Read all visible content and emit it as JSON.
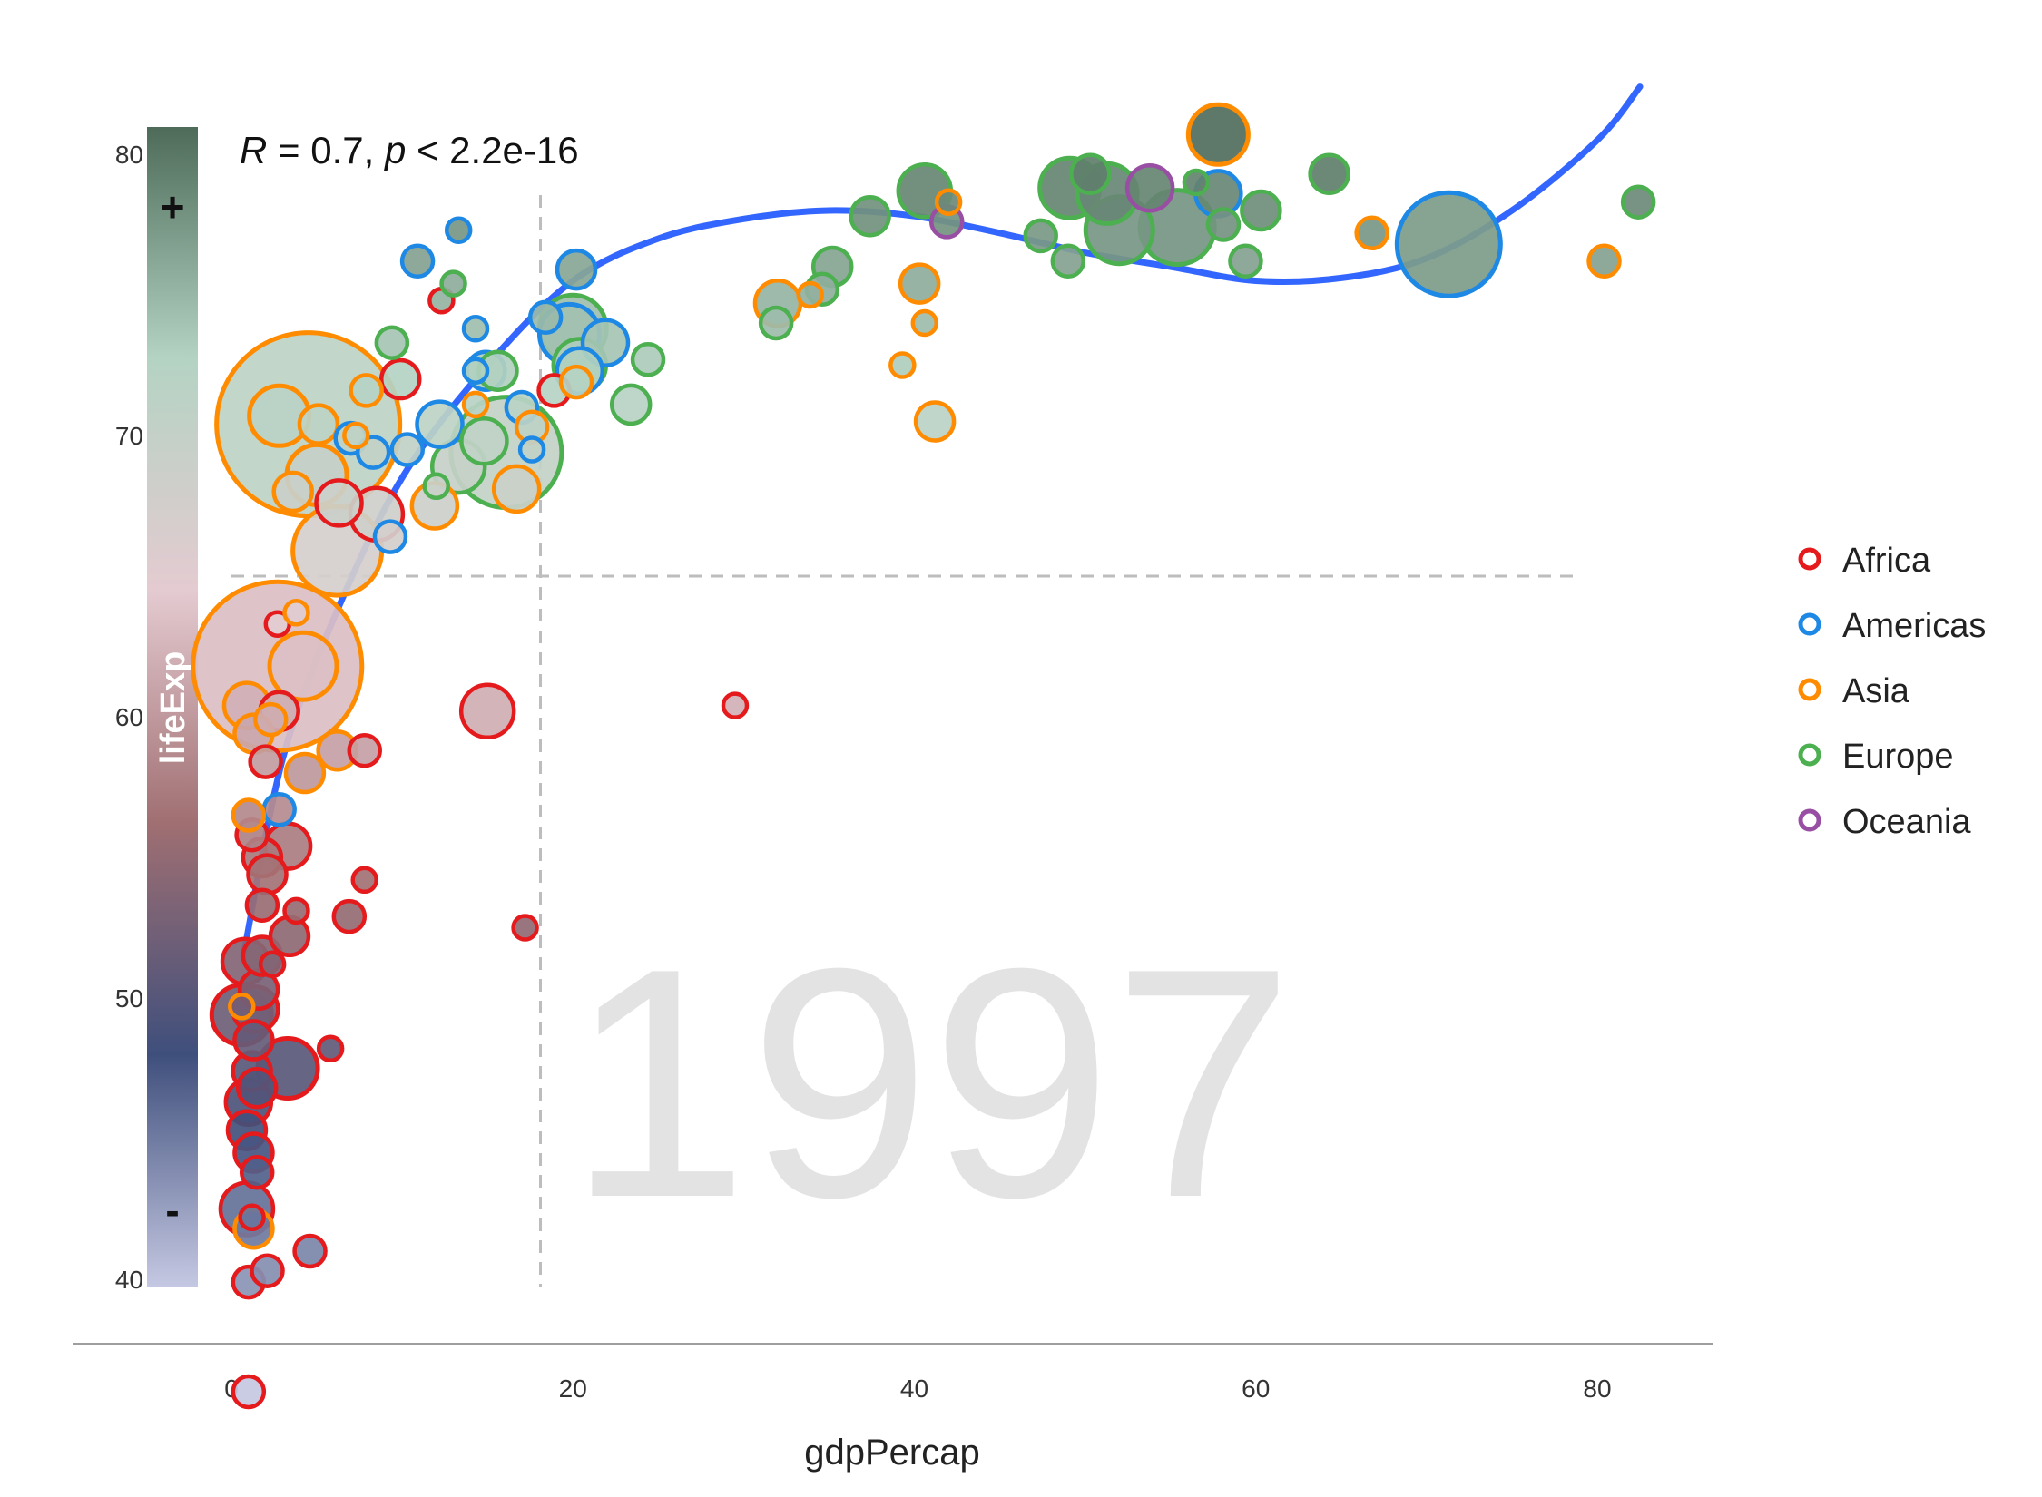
{
  "chart_data": {
    "type": "scatter",
    "xlabel": "gdpPercap",
    "ylabel": "",
    "x_ticks": [
      "0",
      "20",
      "40",
      "60",
      "80"
    ],
    "x_tick_values": [
      0,
      20,
      40,
      60,
      80
    ],
    "y_ticks": [
      "40",
      "50",
      "60",
      "70",
      "80"
    ],
    "y_tick_values": [
      40,
      50,
      60,
      70,
      80
    ],
    "xlim": [
      -9.5,
      87
    ],
    "ylim": [
      35.9,
      81.2
    ],
    "background_label": "1997",
    "stat": {
      "R_symbol": "R",
      "R_value": " = 0.7, ",
      "p_symbol": "p",
      "p_value": " < 2.2e-16"
    },
    "colorbar": {
      "title": "lifeExp",
      "plus": "+",
      "minus": "-",
      "min": 36,
      "max": 81,
      "stops": [
        "#c5c8e2",
        "#3f4f7c",
        "#a06f72",
        "#e4cbd1",
        "#b4d3c3",
        "#4d6b58"
      ]
    },
    "reference_lines": {
      "vline_x": 18.1,
      "hline_y": 65,
      "color": "#bdbdbd"
    },
    "smooth_color": "#3366ff",
    "smooth": [
      [
        0.7,
        51.5
      ],
      [
        3,
        58.5
      ],
      [
        6,
        63.5
      ],
      [
        10,
        68.5
      ],
      [
        15,
        72.5
      ],
      [
        20,
        75.5
      ],
      [
        25,
        77
      ],
      [
        30,
        77.7
      ],
      [
        35,
        78
      ],
      [
        40,
        77.8
      ],
      [
        45,
        77.2
      ],
      [
        50,
        76.5
      ],
      [
        55,
        76
      ],
      [
        60,
        75.5
      ],
      [
        65,
        75.6
      ],
      [
        70,
        76.3
      ],
      [
        75,
        78
      ],
      [
        80,
        80.5
      ],
      [
        82.5,
        82.4
      ]
    ],
    "legend": {
      "position": "right",
      "entries": [
        {
          "name": "Africa",
          "color": "#e41a1c"
        },
        {
          "name": "Americas",
          "color": "#1e88e5"
        },
        {
          "name": "Asia",
          "color": "#ff8c00"
        },
        {
          "name": "Europe",
          "color": "#4caf50"
        },
        {
          "name": "Oceania",
          "color": "#984ea3"
        }
      ]
    },
    "series": [
      {
        "name": "Africa",
        "color": "#e41a1c",
        "points": [
          [
            0.6,
            49.4,
            14
          ],
          [
            0.8,
            51.3,
            10
          ],
          [
            0.9,
            42.5,
            12
          ],
          [
            1.0,
            46.3,
            10
          ],
          [
            0.9,
            45.3,
            8
          ],
          [
            1.0,
            39.9,
            6
          ],
          [
            1.0,
            36.0,
            6
          ],
          [
            1.2,
            47.4,
            8
          ],
          [
            1.3,
            48.5,
            8
          ],
          [
            1.4,
            49.6,
            10
          ],
          [
            1.6,
            50.3,
            8
          ],
          [
            1.5,
            46.8,
            8
          ],
          [
            1.3,
            44.5,
            8
          ],
          [
            1.5,
            43.8,
            6
          ],
          [
            1.8,
            51.5,
            8
          ],
          [
            1.2,
            55.8,
            6
          ],
          [
            1.8,
            55.0,
            8
          ],
          [
            2.1,
            54.4,
            8
          ],
          [
            3.3,
            47.5,
            14
          ],
          [
            3.3,
            55.4,
            10
          ],
          [
            1.8,
            53.3,
            6
          ],
          [
            3.4,
            52.2,
            8
          ],
          [
            2.0,
            58.4,
            6
          ],
          [
            2.8,
            60.2,
            8
          ],
          [
            2.7,
            63.3,
            4
          ],
          [
            3.8,
            53.1,
            4
          ],
          [
            2.1,
            40.3,
            6
          ],
          [
            4.6,
            41.0,
            6
          ],
          [
            5.8,
            48.2,
            4
          ],
          [
            6.3,
            67.6,
            10
          ],
          [
            6.9,
            52.9,
            6
          ],
          [
            7.8,
            58.8,
            6
          ],
          [
            7.8,
            54.2,
            4
          ],
          [
            8.5,
            67.2,
            12
          ],
          [
            9.9,
            72.0,
            8
          ],
          [
            12.3,
            74.8,
            4
          ],
          [
            15.0,
            60.2,
            12
          ],
          [
            17.2,
            52.5,
            4
          ],
          [
            18.9,
            71.6,
            6
          ],
          [
            29.5,
            60.4,
            4
          ],
          [
            1.2,
            42.2,
            4
          ],
          [
            2.4,
            51.2,
            4
          ]
        ]
      },
      {
        "name": "Americas",
        "color": "#1e88e5",
        "points": [
          [
            2.8,
            56.7,
            6
          ],
          [
            7.0,
            69.9,
            6
          ],
          [
            8.3,
            69.4,
            6
          ],
          [
            9.3,
            66.4,
            6
          ],
          [
            10.3,
            69.5,
            6
          ],
          [
            10.9,
            76.2,
            6
          ],
          [
            12.2,
            70.4,
            10
          ],
          [
            13.3,
            77.3,
            4
          ],
          [
            14.3,
            72.3,
            4
          ],
          [
            14.3,
            73.8,
            4
          ],
          [
            14.9,
            72.3,
            8
          ],
          [
            17.0,
            71.0,
            6
          ],
          [
            17.6,
            69.5,
            4
          ],
          [
            18.4,
            74.2,
            6
          ],
          [
            19.8,
            73.6,
            14
          ],
          [
            20.2,
            75.9,
            8
          ],
          [
            21.9,
            73.3,
            10
          ],
          [
            20.4,
            72.3,
            10
          ],
          [
            57.8,
            78.6,
            10
          ],
          [
            71.3,
            76.8,
            26
          ]
        ]
      },
      {
        "name": "Asia",
        "color": "#ff8c00",
        "points": [
          [
            4.5,
            70.4,
            48
          ],
          [
            2.7,
            61.8,
            44
          ],
          [
            2.8,
            70.7,
            14
          ],
          [
            4.2,
            61.8,
            16
          ],
          [
            3.6,
            68.0,
            8
          ],
          [
            4.3,
            58.0,
            8
          ],
          [
            6.2,
            65.9,
            22
          ],
          [
            5.1,
            70.4,
            8
          ],
          [
            5.0,
            68.6,
            14
          ],
          [
            1.0,
            56.5,
            6
          ],
          [
            1.3,
            59.4,
            8
          ],
          [
            0.9,
            60.4,
            10
          ],
          [
            1.3,
            41.8,
            8
          ],
          [
            2.3,
            59.9,
            6
          ],
          [
            3.8,
            63.7,
            4
          ],
          [
            6.2,
            58.8,
            8
          ],
          [
            7.3,
            70.0,
            4
          ],
          [
            7.9,
            71.6,
            6
          ],
          [
            11.9,
            67.5,
            10
          ],
          [
            14.3,
            71.1,
            4
          ],
          [
            16.7,
            68.1,
            10
          ],
          [
            17.6,
            70.3,
            6
          ],
          [
            20.2,
            71.9,
            6
          ],
          [
            32.0,
            74.7,
            10
          ],
          [
            33.9,
            75.0,
            4
          ],
          [
            39.3,
            72.5,
            4
          ],
          [
            40.3,
            75.4,
            8
          ],
          [
            40.6,
            74.0,
            4
          ],
          [
            41.2,
            70.5,
            8
          ],
          [
            42.0,
            78.3,
            4
          ],
          [
            57.8,
            80.7,
            14
          ],
          [
            66.8,
            77.2,
            6
          ],
          [
            80.4,
            76.2,
            6
          ],
          [
            0.6,
            49.7,
            4
          ]
        ]
      },
      {
        "name": "Europe",
        "color": "#4caf50",
        "points": [
          [
            9.4,
            73.3,
            6
          ],
          [
            13.0,
            75.4,
            4
          ],
          [
            13.3,
            68.9,
            12
          ],
          [
            14.8,
            69.8,
            10
          ],
          [
            15.6,
            72.3,
            8
          ],
          [
            16.1,
            69.4,
            28
          ],
          [
            20.0,
            73.8,
            16
          ],
          [
            20.4,
            72.5,
            12
          ],
          [
            23.4,
            71.1,
            8
          ],
          [
            24.4,
            72.7,
            6
          ],
          [
            31.9,
            74.0,
            6
          ],
          [
            34.6,
            75.2,
            6
          ],
          [
            35.2,
            76.0,
            8
          ],
          [
            37.4,
            77.8,
            8
          ],
          [
            40.6,
            78.7,
            12
          ],
          [
            47.4,
            77.1,
            6
          ],
          [
            49.0,
            76.2,
            6
          ],
          [
            49.1,
            78.8,
            14
          ],
          [
            50.3,
            79.3,
            8
          ],
          [
            51.3,
            78.6,
            14
          ],
          [
            52.0,
            77.3,
            16
          ],
          [
            55.4,
            77.4,
            18
          ],
          [
            56.5,
            79.0,
            4
          ],
          [
            58.1,
            77.5,
            6
          ],
          [
            59.4,
            76.2,
            6
          ],
          [
            60.3,
            78.0,
            8
          ],
          [
            64.3,
            79.3,
            8
          ],
          [
            82.4,
            78.3,
            6
          ],
          [
            12.0,
            68.2,
            4
          ]
        ]
      },
      {
        "name": "Oceania",
        "color": "#984ea3",
        "points": [
          [
            41.9,
            77.6,
            6
          ],
          [
            53.8,
            78.8,
            10
          ]
        ]
      }
    ]
  }
}
